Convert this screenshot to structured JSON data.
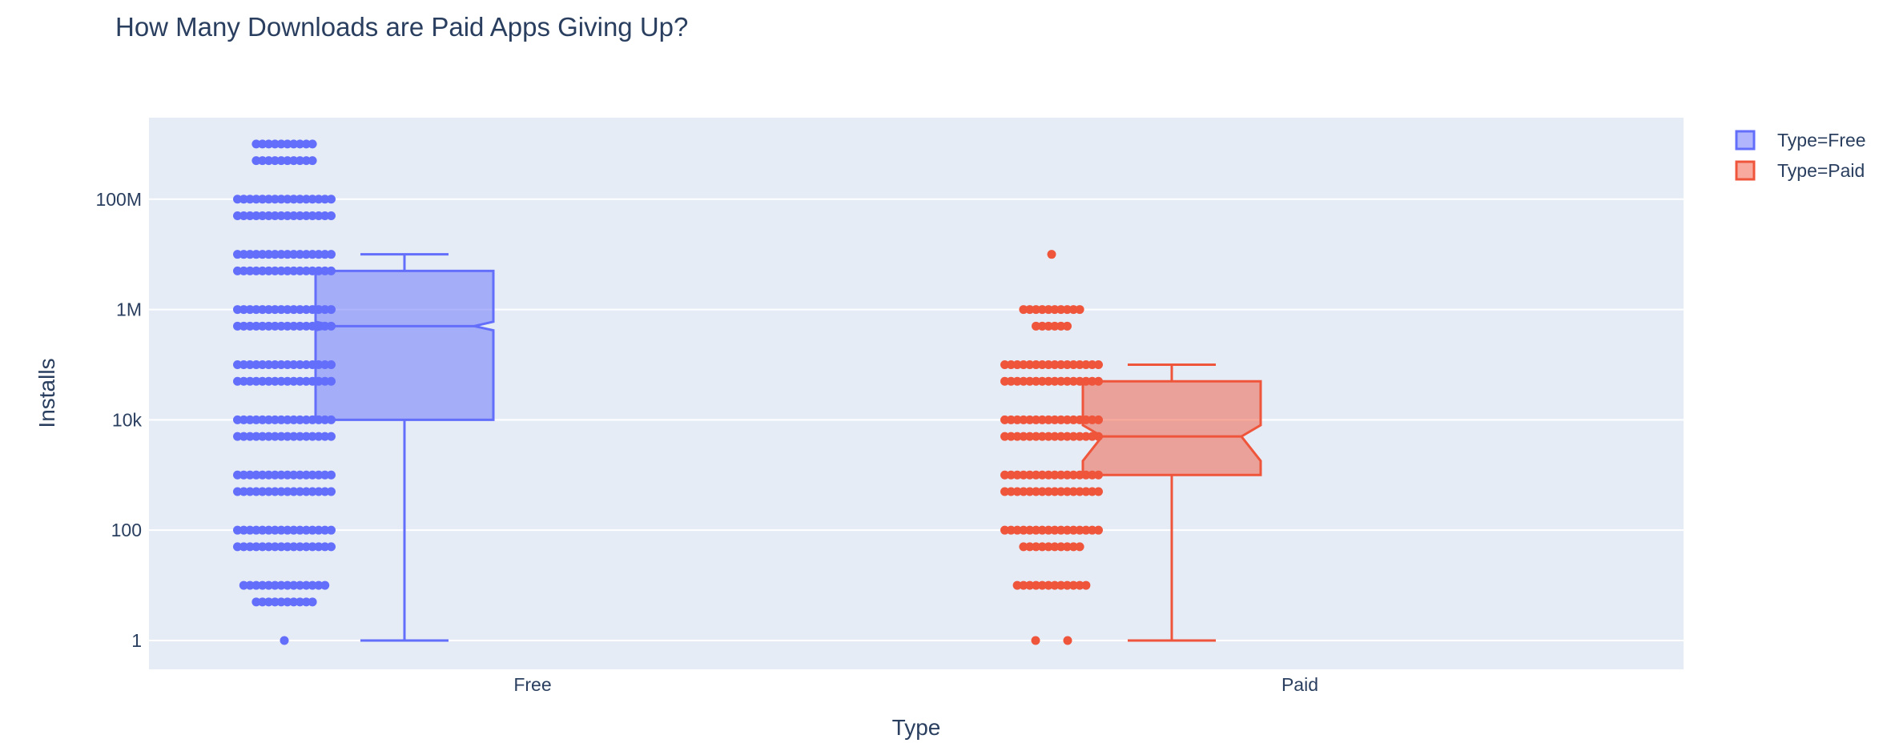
{
  "chart_data": {
    "type": "box",
    "title": "How Many Downloads are Paid Apps Giving Up?",
    "xlabel": "Type",
    "ylabel": "Installs",
    "y_scale": "log",
    "y_range": [
      0.3,
      3000000000
    ],
    "y_ticks": [
      {
        "value": 1,
        "label": "1"
      },
      {
        "value": 100,
        "label": "100"
      },
      {
        "value": 10000,
        "label": "10k"
      },
      {
        "value": 1000000,
        "label": "1M"
      },
      {
        "value": 100000000,
        "label": "100M"
      }
    ],
    "categories": [
      "Free",
      "Paid"
    ],
    "grid": true,
    "legend_position": "top-right",
    "colors": {
      "plot_bg": "#e5ecf6",
      "grid": "#ffffff",
      "text": "#2a3f5f"
    },
    "series": [
      {
        "name": "Type=Free",
        "category": "Free",
        "color": "#636efa",
        "fill": "rgba(99,110,250,0.5)",
        "box": {
          "min": 1,
          "q1": 10000,
          "median": 500000,
          "q3": 5000000,
          "upper_fence": 10000000,
          "notch_low": 420000,
          "notch_high": 600000
        },
        "points": [
          {
            "value": 1000000000,
            "count": 10
          },
          {
            "value": 500000000,
            "count": 10
          },
          {
            "value": 100000000,
            "count": 16
          },
          {
            "value": 50000000,
            "count": 16
          },
          {
            "value": 10000000,
            "count": 16
          },
          {
            "value": 5000000,
            "count": 16
          },
          {
            "value": 1000000,
            "count": 16
          },
          {
            "value": 500000,
            "count": 16
          },
          {
            "value": 100000,
            "count": 16
          },
          {
            "value": 50000,
            "count": 16
          },
          {
            "value": 10000,
            "count": 16
          },
          {
            "value": 5000,
            "count": 16
          },
          {
            "value": 1000,
            "count": 16
          },
          {
            "value": 500,
            "count": 16
          },
          {
            "value": 100,
            "count": 16
          },
          {
            "value": 50,
            "count": 16
          },
          {
            "value": 10,
            "count": 14
          },
          {
            "value": 5,
            "count": 10
          },
          {
            "value": 1,
            "count": 1
          }
        ]
      },
      {
        "name": "Type=Paid",
        "category": "Paid",
        "color": "#ef553b",
        "fill": "rgba(239,85,59,0.5)",
        "box": {
          "min": 1,
          "q1": 1000,
          "median": 5000,
          "q3": 50000,
          "upper_fence": 100000,
          "notch_low": 1800,
          "notch_high": 8000
        },
        "points": [
          {
            "value": 10000000,
            "count": 1
          },
          {
            "value": 1000000,
            "count": 10
          },
          {
            "value": 500000,
            "count": 6
          },
          {
            "value": 100000,
            "count": 16
          },
          {
            "value": 50000,
            "count": 16
          },
          {
            "value": 10000,
            "count": 16
          },
          {
            "value": 5000,
            "count": 16
          },
          {
            "value": 1000,
            "count": 16
          },
          {
            "value": 500,
            "count": 16
          },
          {
            "value": 100,
            "count": 16
          },
          {
            "value": 50,
            "count": 10
          },
          {
            "value": 10,
            "count": 12
          },
          {
            "value": 1,
            "count": 2
          }
        ]
      }
    ]
  }
}
